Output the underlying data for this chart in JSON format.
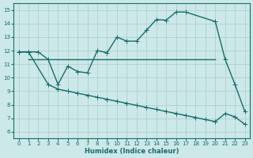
{
  "xlabel": "Humidex (Indice chaleur)",
  "bg_color": "#cce8e8",
  "grid_color": "#aacccc",
  "line_color": "#1a6b6b",
  "xlim": [
    -0.5,
    23.5
  ],
  "ylim": [
    5.5,
    15.5
  ],
  "xticks": [
    0,
    1,
    2,
    3,
    4,
    5,
    6,
    7,
    8,
    9,
    10,
    11,
    12,
    13,
    14,
    15,
    16,
    17,
    18,
    19,
    20,
    21,
    22,
    23
  ],
  "yticks": [
    6,
    7,
    8,
    9,
    10,
    11,
    12,
    13,
    14,
    15
  ],
  "line1_x": [
    0,
    1,
    2,
    3,
    4,
    5,
    6,
    7,
    8,
    9,
    10,
    11,
    12,
    13,
    14,
    15,
    16,
    17,
    20,
    21,
    22,
    23
  ],
  "line1_y": [
    11.9,
    11.9,
    11.9,
    11.35,
    9.5,
    10.85,
    10.45,
    10.35,
    12.0,
    11.85,
    13.0,
    12.7,
    12.7,
    13.5,
    14.3,
    14.25,
    14.85,
    14.85,
    14.15,
    11.35,
    9.5,
    7.5
  ],
  "line2_x": [
    1,
    2,
    3,
    4,
    5,
    6,
    7,
    8,
    9,
    10,
    11,
    12,
    13,
    14,
    15,
    16,
    17,
    18,
    19,
    20
  ],
  "line2_y": [
    11.35,
    11.35,
    11.35,
    11.35,
    11.35,
    11.35,
    11.35,
    11.35,
    11.35,
    11.35,
    11.35,
    11.35,
    11.35,
    11.35,
    11.35,
    11.35,
    11.35,
    11.35,
    11.35,
    11.35
  ],
  "line3_x": [
    0,
    1,
    3,
    4,
    5,
    6,
    7,
    8,
    9,
    10,
    11,
    12,
    13,
    14,
    15,
    16,
    17,
    18,
    19,
    20,
    21,
    22,
    23
  ],
  "line3_y": [
    11.9,
    11.9,
    9.5,
    9.15,
    9.0,
    8.85,
    8.7,
    8.55,
    8.4,
    8.25,
    8.1,
    7.95,
    7.8,
    7.65,
    7.5,
    7.35,
    7.2,
    7.05,
    6.9,
    6.75,
    7.35,
    7.1,
    6.55
  ],
  "marker_size": 3,
  "linewidth": 1.0
}
